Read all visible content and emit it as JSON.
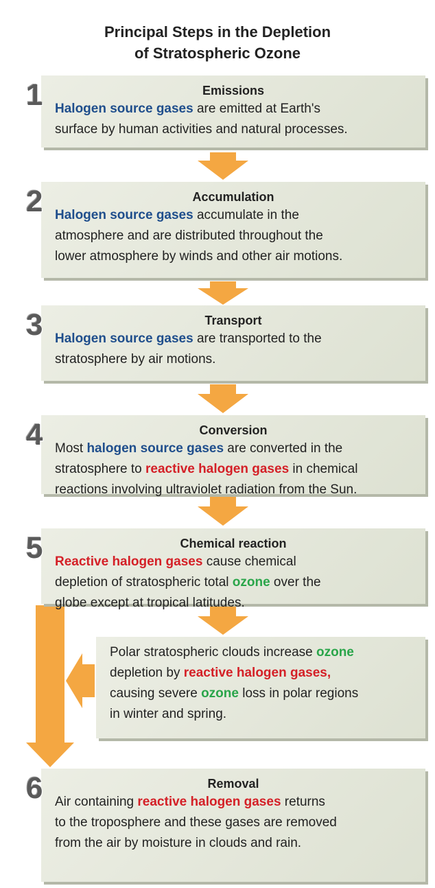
{
  "title": [
    "Principal Steps in the Depletion",
    "of Stratospheric Ozone"
  ],
  "steps": [
    {
      "number": "1",
      "heading": "Emissions",
      "lines": [
        [
          {
            "text": "Halogen source gases",
            "color": "#1f4e8c"
          },
          {
            "text": " are emitted at Earth's"
          }
        ],
        [
          {
            "text": "surface by human activities and natural processes."
          }
        ]
      ]
    },
    {
      "number": "2",
      "heading": "Accumulation",
      "lines": [
        [
          {
            "text": "Halogen source gases",
            "color": "#1f4e8c"
          },
          {
            "text": " accumulate in the"
          }
        ],
        [
          {
            "text": "atmosphere and are distributed throughout the"
          }
        ],
        [
          {
            "text": "lower atmosphere by winds and other air motions."
          }
        ]
      ]
    },
    {
      "number": "3",
      "heading": "Transport",
      "lines": [
        [
          {
            "text": "Halogen source gases",
            "color": "#1f4e8c"
          },
          {
            "text": " are transported to the"
          }
        ],
        [
          {
            "text": "stratosphere by air motions."
          }
        ]
      ]
    },
    {
      "number": "4",
      "heading": "Conversion",
      "lines": [
        [
          {
            "text": "Most "
          },
          {
            "text": "halogen source gases",
            "color": "#1f4e8c"
          },
          {
            "text": " are converted in the"
          }
        ],
        [
          {
            "text": "stratosphere to "
          },
          {
            "text": "reactive halogen gases",
            "color": "#d42027"
          },
          {
            "text": " in chemical"
          }
        ],
        [
          {
            "text": "reactions involving ultraviolet radiation from the Sun."
          }
        ]
      ]
    },
    {
      "number": "5",
      "heading": "Chemical reaction",
      "lines": [
        [
          {
            "text": "Reactive halogen gases",
            "color": "#d42027"
          },
          {
            "text": " cause chemical"
          }
        ],
        [
          {
            "text": "depletion of stratospheric total "
          },
          {
            "text": "ozone",
            "color": "#2aa54a"
          },
          {
            "text": " over the"
          }
        ],
        [
          {
            "text": "globe except at tropical latitudes."
          }
        ]
      ]
    },
    {
      "number": "6",
      "heading": "Removal",
      "lines": [
        [
          {
            "text": "Air containing "
          },
          {
            "text": "reactive halogen gases",
            "color": "#d42027"
          },
          {
            "text": " returns"
          }
        ],
        [
          {
            "text": "to the troposphere and these gases are removed"
          }
        ],
        [
          {
            "text": "from the air by moisture in clouds and rain."
          }
        ]
      ]
    }
  ],
  "note": {
    "lines": [
      [
        {
          "text": "Polar stratospheric clouds increase "
        },
        {
          "text": "ozone",
          "color": "#2aa54a"
        }
      ],
      [
        {
          "text": "depletion by "
        },
        {
          "text": "reactive halogen gases,",
          "color": "#d42027"
        }
      ],
      [
        {
          "text": "causing severe "
        },
        {
          "text": "ozone",
          "color": "#2aa54a"
        },
        {
          "text": " loss in polar regions"
        }
      ],
      [
        {
          "text": "in winter and spring."
        }
      ]
    ]
  }
}
